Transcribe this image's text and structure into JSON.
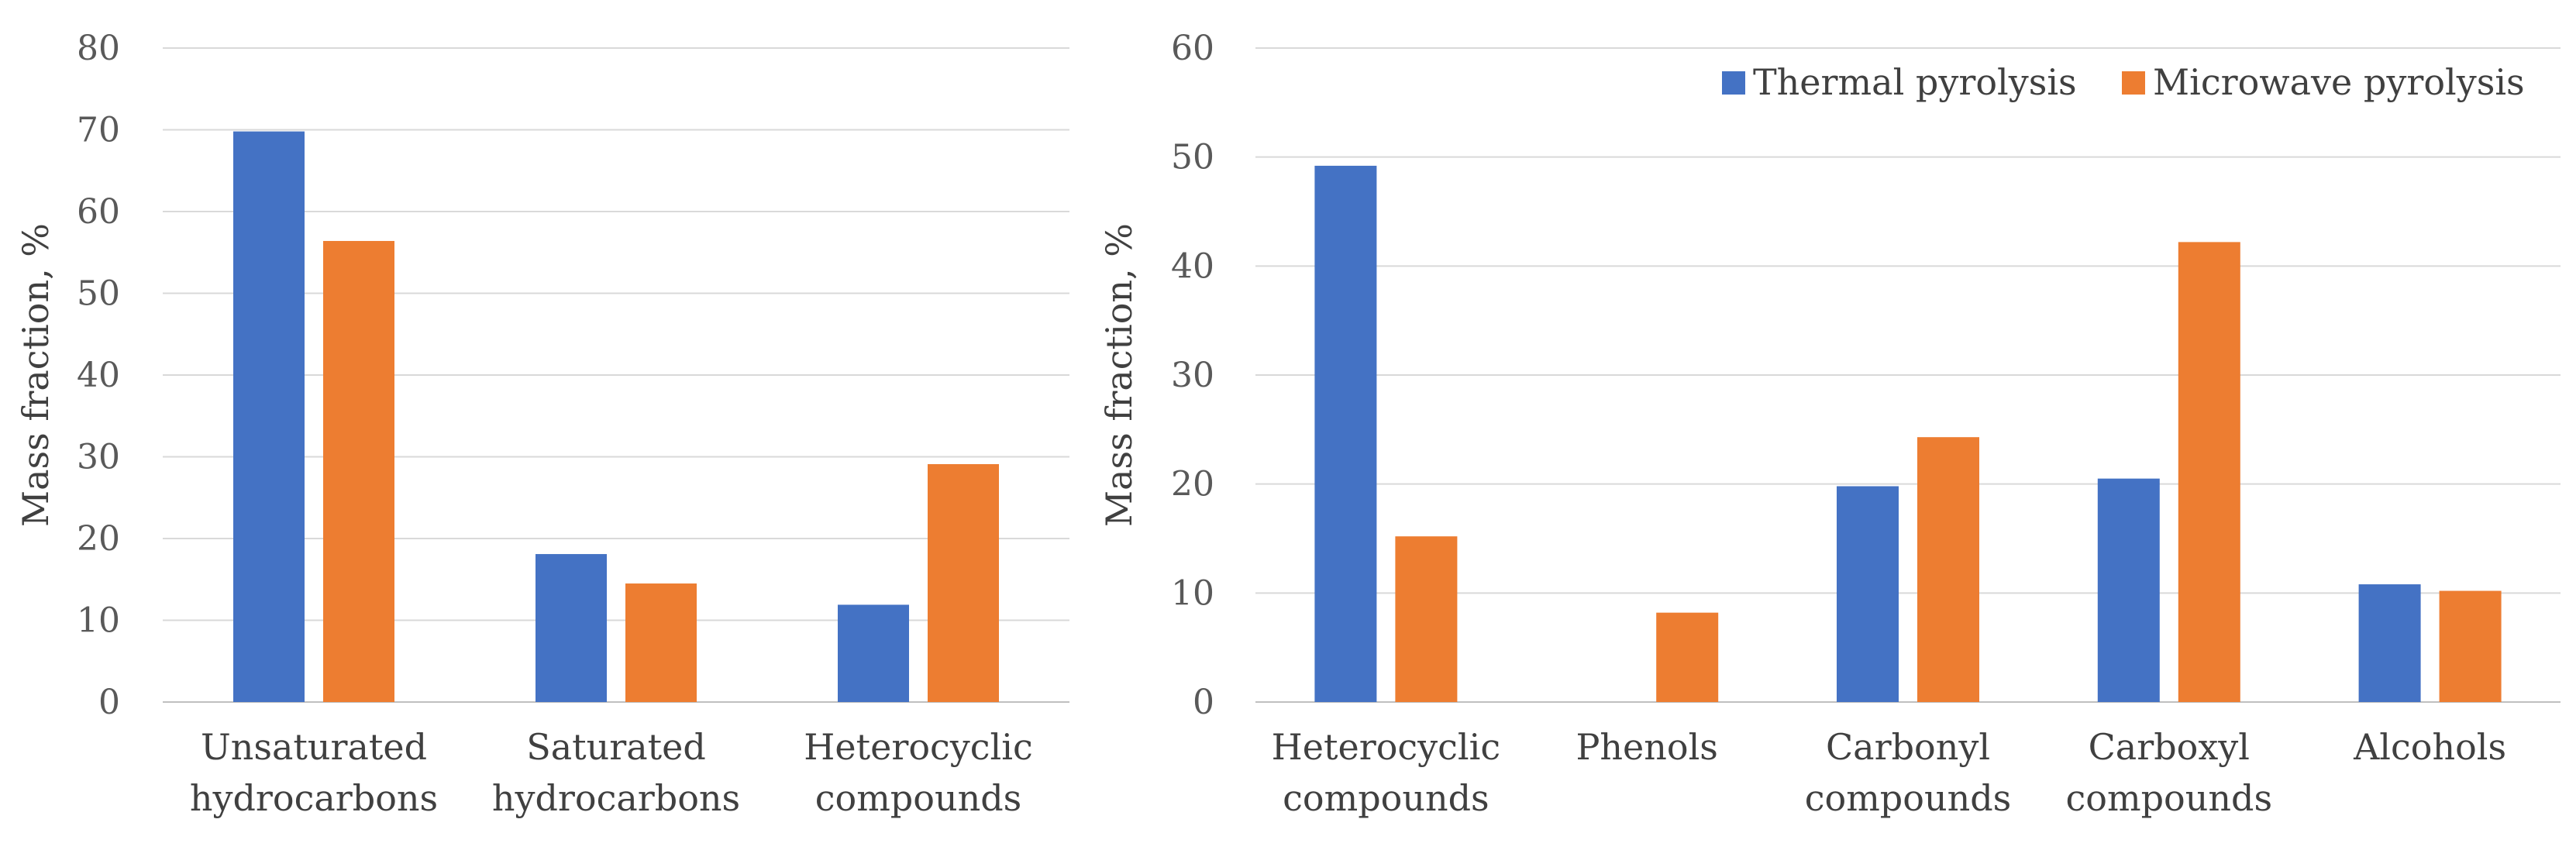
{
  "colors": {
    "thermal": "#4472C4",
    "microwave": "#ED7D31",
    "grid": "#D9D9D9"
  },
  "chart_data": [
    {
      "type": "bar",
      "title": "",
      "xlabel": "",
      "ylabel": "Mass fraction, %",
      "ylim": [
        0,
        80
      ],
      "yticks": [
        "0",
        "10",
        "20",
        "30",
        "40",
        "50",
        "60",
        "70",
        "80"
      ],
      "categories": [
        [
          "Unsaturated",
          "hydrocarbons"
        ],
        [
          "Saturated",
          "hydrocarbons"
        ],
        [
          "Heterocyclic",
          "compounds"
        ]
      ],
      "series": [
        {
          "name": "Thermal pyrolysis",
          "values": [
            69.8,
            18.1,
            11.9
          ]
        },
        {
          "name": "Microwave pyrolysis",
          "values": [
            56.4,
            14.5,
            29.1
          ]
        }
      ],
      "legend": false
    },
    {
      "type": "bar",
      "title": "",
      "xlabel": "",
      "ylabel": "Mass fraction, %",
      "ylim": [
        0,
        60
      ],
      "yticks": [
        "0",
        "10",
        "20",
        "30",
        "40",
        "50",
        "60"
      ],
      "categories": [
        [
          "Heterocyclic",
          "compounds"
        ],
        [
          "Phenols"
        ],
        [
          "Carbonyl",
          "compounds"
        ],
        [
          "Carboxyl",
          "compounds"
        ],
        [
          "Alcohols"
        ]
      ],
      "series": [
        {
          "name": "Thermal pyrolysis",
          "values": [
            49.2,
            0,
            19.8,
            20.5,
            10.8
          ]
        },
        {
          "name": "Microwave pyrolysis",
          "values": [
            15.2,
            8.2,
            24.3,
            42.2,
            10.2
          ]
        }
      ],
      "legend": true,
      "legend_position": "top-right"
    }
  ]
}
